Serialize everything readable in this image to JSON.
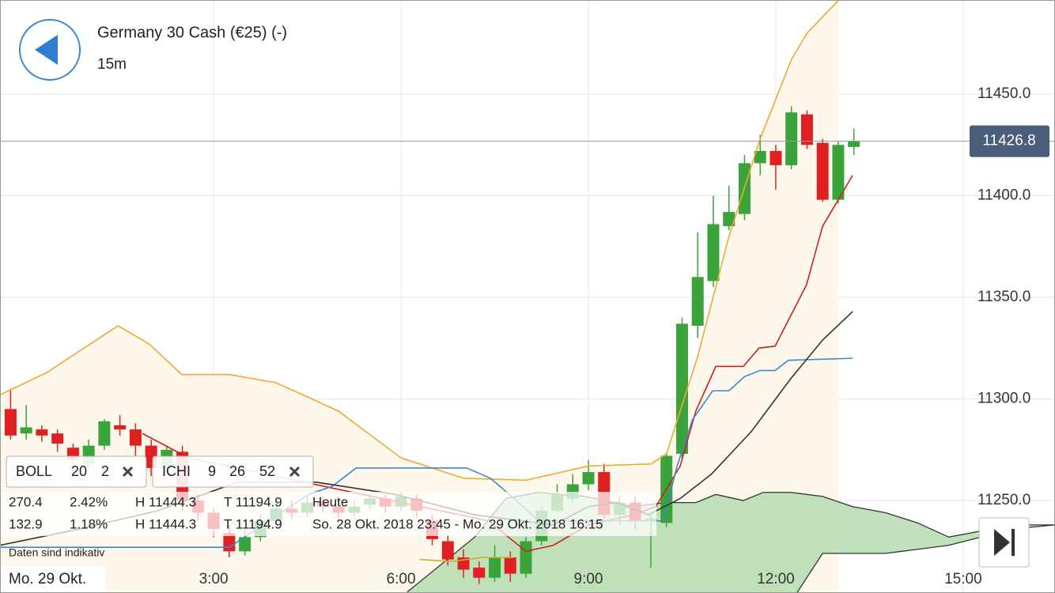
{
  "header": {
    "title": "Germany 30 Cash (€25) (-)",
    "interval": "15m"
  },
  "indicator_panel": {
    "boll": {
      "name": "BOLL",
      "params": [
        "20",
        "2"
      ]
    },
    "ichi": {
      "name": "ICHI",
      "params": [
        "9",
        "26",
        "52"
      ]
    },
    "rows": [
      [
        "270.4",
        "2.42%",
        "H 11444.3",
        "T 11194.9",
        "Heute"
      ],
      [
        "132.9",
        "1.18%",
        "H 11444.3",
        "T 11194.9",
        "So. 28 Okt. 2018 23:45 - Mo. 29 Okt. 2018 16:15"
      ]
    ],
    "note": "Daten sind indikativ"
  },
  "date_label": "Mo. 29 Okt.",
  "chart_data": {
    "type": "candlestick",
    "up_color": "#3aa33a",
    "down_color": "#e02020",
    "xlim": [
      -0.42,
      16.47
    ],
    "xticks": [
      {
        "value": 3,
        "label": "3:00"
      },
      {
        "value": 6,
        "label": "6:00"
      },
      {
        "value": 9,
        "label": "9:00"
      },
      {
        "value": 12,
        "label": "12:00"
      },
      {
        "value": 15,
        "label": "15:00"
      }
    ],
    "ylim": [
      11204.5,
      11496.3
    ],
    "yticks": [
      {
        "value": 11250,
        "label": "11250.0"
      },
      {
        "value": 11300,
        "label": "11300.0"
      },
      {
        "value": 11350,
        "label": "11350.0"
      },
      {
        "value": 11400,
        "label": "11400.0"
      },
      {
        "value": 11450,
        "label": "11450.0"
      }
    ],
    "grid": true,
    "current_price": 11426.8,
    "x": [
      -0.25,
      0,
      0.25,
      0.5,
      0.75,
      1,
      1.25,
      1.5,
      1.75,
      2,
      2.25,
      2.5,
      2.75,
      3,
      3.25,
      3.5,
      3.75,
      4,
      4.25,
      4.5,
      4.75,
      5,
      5.25,
      5.5,
      5.75,
      6,
      6.25,
      6.5,
      6.75,
      7,
      7.25,
      7.5,
      7.75,
      8,
      8.25,
      8.5,
      8.75,
      9,
      9.25,
      9.5,
      9.75,
      10,
      10.25,
      10.5,
      10.75,
      11,
      11.25,
      11.5,
      11.75,
      12,
      12.25,
      12.5,
      12.75,
      13,
      13.25
    ],
    "open": [
      11295,
      11283,
      11285,
      11283,
      11276,
      11268,
      11277,
      11287,
      11285,
      11277,
      11266,
      11274,
      11250,
      11244,
      11234,
      11225,
      11232,
      11240,
      11246,
      11244,
      11249,
      11247,
      11244,
      11248,
      11251,
      11247,
      11251,
      11240,
      11230,
      11222,
      11217,
      11212,
      11222,
      11214,
      11230,
      11245,
      11251,
      11258,
      11264,
      11243,
      11249,
      11240,
      11239,
      11273,
      11336,
      11358,
      11385,
      11391,
      11416,
      11422,
      11415,
      11440,
      11426,
      11398,
      11424
    ],
    "close": [
      11282,
      11286,
      11282,
      11278,
      11270,
      11277,
      11289,
      11285,
      11277,
      11266,
      11275,
      11250,
      11244,
      11236,
      11225,
      11232,
      11240,
      11246,
      11244,
      11249,
      11247,
      11244,
      11247,
      11251,
      11247,
      11252,
      11245,
      11231,
      11221,
      11216,
      11212,
      11222,
      11214,
      11230,
      11245,
      11253,
      11258,
      11264,
      11243,
      11249,
      11240,
      11241,
      11272,
      11337,
      11360,
      11386,
      11392,
      11416,
      11422,
      11415,
      11441,
      11425,
      11398,
      11425,
      11427
    ],
    "high": [
      11305,
      11297,
      11287,
      11285,
      11278,
      11280,
      11290,
      11292,
      11288,
      11280,
      11277,
      11277,
      11253,
      11246,
      11238,
      11236,
      11243,
      11249,
      11250,
      11252,
      11252,
      11250,
      11250,
      11253,
      11253,
      11254,
      11253,
      11243,
      11233,
      11226,
      11220,
      11228,
      11225,
      11232,
      11247,
      11258,
      11263,
      11270,
      11268,
      11252,
      11252,
      11244,
      11273,
      11340,
      11382,
      11400,
      11405,
      11420,
      11430,
      11425,
      11444,
      11442,
      11428,
      11427,
      11433
    ],
    "low": [
      11280,
      11280,
      11279,
      11274,
      11264,
      11265,
      11275,
      11282,
      11272,
      11262,
      11264,
      11245,
      11240,
      11232,
      11222,
      11223,
      11230,
      11238,
      11241,
      11242,
      11244,
      11241,
      11242,
      11246,
      11244,
      11245,
      11242,
      11228,
      11218,
      11212,
      11209,
      11210,
      11210,
      11212,
      11228,
      11244,
      11249,
      11255,
      11241,
      11238,
      11236,
      11217,
      11237,
      11270,
      11330,
      11355,
      11383,
      11388,
      11410,
      11403,
      11413,
      11423,
      11397,
      11396,
      11420
    ],
    "indicators": [
      {
        "color": "#f0a830",
        "x": [
          -0.42,
          0.33,
          1.47,
          1.97,
          2.49,
          3.25,
          4.0,
          5.0,
          6.0,
          7.0,
          8.0,
          9.0,
          10.0,
          10.25,
          10.75,
          11.25,
          11.75,
          12.25,
          12.5,
          13.0
        ],
        "values": [
          11302,
          11313,
          11336,
          11327,
          11312,
          11312,
          11308,
          11294,
          11271,
          11261,
          11260,
          11267,
          11268,
          11273,
          11321,
          11380,
          11428,
          11467,
          11480,
          11496
        ]
      },
      {
        "color": "#c8b030",
        "x": [
          6.3,
          6.8,
          7.3,
          7.8
        ],
        "values": [
          11221,
          11220,
          11222,
          11222
        ]
      },
      {
        "color": "#cc2020",
        "x": [
          1.86,
          2.6,
          7.4,
          8.0,
          8.44,
          9.0,
          9.71,
          10.08,
          10.47,
          10.72,
          11.04,
          11.48,
          11.73,
          11.99,
          12.24,
          12.49,
          12.75,
          13.23
        ],
        "values": [
          11283,
          11271,
          11240,
          11225,
          11228,
          11238,
          11243,
          11247,
          11267,
          11294,
          11316,
          11316,
          11325,
          11326,
          11341,
          11356,
          11385,
          11410
        ]
      },
      {
        "color": "#3a88d0",
        "x": [
          -0.42,
          3.25,
          4.52,
          4.9,
          5.28,
          7.05,
          7.43,
          7.81,
          8.2,
          10.2,
          10.42,
          10.67,
          10.99,
          11.25,
          11.5,
          11.75,
          11.99,
          12.2,
          13.23
        ],
        "values": [
          11227,
          11227,
          11253,
          11257,
          11266,
          11266,
          11261,
          11251,
          11240,
          11240,
          11267,
          11290,
          11304,
          11304,
          11311,
          11314,
          11314,
          11319,
          11320
        ]
      },
      {
        "color": "#333333",
        "x": [
          -0.42,
          0.85,
          2.11,
          3.38,
          4.65,
          5.91,
          7.18,
          7.94,
          8.44,
          9.0,
          9.46,
          9.96,
          10.47,
          10.97,
          11.61,
          12.24,
          12.75,
          13.23
        ],
        "values": [
          11228,
          11236,
          11245,
          11259,
          11259,
          11253,
          11243,
          11240,
          11238,
          11247,
          11249,
          11243,
          11251,
          11263,
          11284,
          11310,
          11329,
          11343
        ]
      }
    ],
    "cloud": {
      "color": "#b5dcb0",
      "x": [
        6.1,
        7.18,
        7.68,
        8.19,
        8.95,
        9.71,
        10.22,
        10.72,
        11.04,
        11.48,
        11.8,
        12.24,
        12.75,
        13.23,
        13.76,
        14.27,
        14.77,
        15.28,
        15.78,
        16.47
      ],
      "upper": [
        11205,
        11232,
        11251,
        11254,
        11252,
        11247,
        11249,
        11249,
        11253,
        11250,
        11254,
        11254,
        11252,
        11247,
        11244,
        11239,
        11232,
        11235,
        11238,
        11238
      ],
      "lower": [
        11200,
        11200,
        11200,
        11200,
        11200,
        11200,
        11200,
        11200,
        11200,
        11200,
        11200,
        11200,
        11224,
        11224,
        11224,
        11226,
        11228,
        11232,
        11236,
        11238
      ]
    }
  }
}
